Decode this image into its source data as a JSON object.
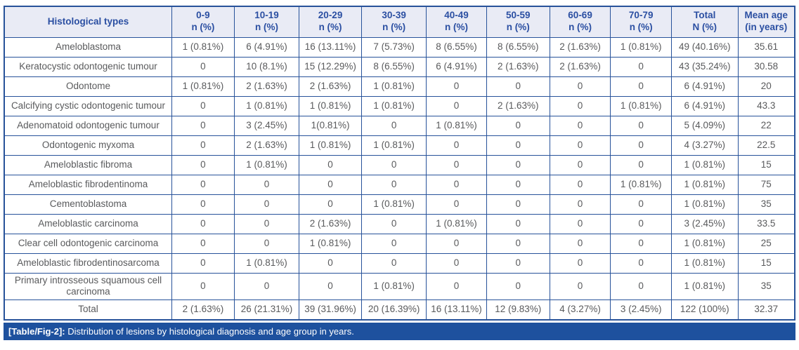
{
  "colors": {
    "border": "#27529a",
    "header_bg": "#e9ebf5",
    "header_text": "#2b4fa2",
    "body_text": "#595a5c",
    "caption_bg": "#1e519e",
    "caption_text": "#ffffff"
  },
  "table": {
    "header": {
      "row_label": "Histological types",
      "age_groups": [
        {
          "line1": "0-9",
          "line2": "n (%)"
        },
        {
          "line1": "10-19",
          "line2": "n (%)"
        },
        {
          "line1": "20-29",
          "line2": "n (%)"
        },
        {
          "line1": "30-39",
          "line2": "n (%)"
        },
        {
          "line1": "40-49",
          "line2": "n (%)"
        },
        {
          "line1": "50-59",
          "line2": "n (%)"
        },
        {
          "line1": "60-69",
          "line2": "n (%)"
        },
        {
          "line1": "70-79",
          "line2": "n (%)"
        },
        {
          "line1": "Total",
          "line2": "N (%)"
        },
        {
          "line1": "Mean age",
          "line2": "(in years)"
        }
      ]
    },
    "rows": [
      {
        "label": "Ameloblastoma",
        "values": [
          "1 (0.81%)",
          "6 (4.91%)",
          "16 (13.11%)",
          "7 (5.73%)",
          "8 (6.55%)",
          "8 (6.55%)",
          "2 (1.63%)",
          "1 (0.81%)",
          "49 (40.16%)",
          "35.61"
        ]
      },
      {
        "label": "Keratocystic odontogenic tumour",
        "values": [
          "0",
          "10 (8.1%)",
          "15 (12.29%)",
          "8 (6.55%)",
          "6 (4.91%)",
          "2 (1.63%)",
          "2 (1.63%)",
          "0",
          "43 (35.24%)",
          "30.58"
        ]
      },
      {
        "label": "Odontome",
        "values": [
          "1 (0.81%)",
          "2 (1.63%)",
          "2 (1.63%)",
          "1 (0.81%)",
          "0",
          "0",
          "0",
          "0",
          "6 (4.91%)",
          "20"
        ]
      },
      {
        "label": "Calcifying cystic odontogenic tumour",
        "values": [
          "0",
          "1 (0.81%)",
          "1 (0.81%)",
          "1 (0.81%)",
          "0",
          "2 (1.63%)",
          "0",
          "1 (0.81%)",
          "6 (4.91%)",
          "43.3"
        ]
      },
      {
        "label": "Adenomatoid odontogenic tumour",
        "values": [
          "0",
          "3 (2.45%)",
          "1(0.81%)",
          "0",
          "1 (0.81%)",
          "0",
          "0",
          "0",
          "5 (4.09%)",
          "22"
        ]
      },
      {
        "label": "Odontogenic myxoma",
        "values": [
          "0",
          "2 (1.63%)",
          "1 (0.81%)",
          "1 (0.81%)",
          "0",
          "0",
          "0",
          "0",
          "4 (3.27%)",
          "22.5"
        ]
      },
      {
        "label": "Ameloblastic fibroma",
        "values": [
          "0",
          "1 (0.81%)",
          "0",
          "0",
          "0",
          "0",
          "0",
          "0",
          "1 (0.81%)",
          "15"
        ]
      },
      {
        "label": "Ameloblastic fibrodentinoma",
        "values": [
          "0",
          "0",
          "0",
          "0",
          "0",
          "0",
          "0",
          "1 (0.81%)",
          "1 (0.81%)",
          "75"
        ]
      },
      {
        "label": "Cementoblastoma",
        "values": [
          "0",
          "0",
          "0",
          "1 (0.81%)",
          "0",
          "0",
          "0",
          "0",
          "1 (0.81%)",
          "35"
        ]
      },
      {
        "label": "Ameloblastic carcinoma",
        "values": [
          "0",
          "0",
          "2 (1.63%)",
          "0",
          "1 (0.81%)",
          "0",
          "0",
          "0",
          "3 (2.45%)",
          "33.5"
        ]
      },
      {
        "label": "Clear cell odontogenic carcinoma",
        "values": [
          "0",
          "0",
          "1 (0.81%)",
          "0",
          "0",
          "0",
          "0",
          "0",
          "1 (0.81%)",
          "25"
        ]
      },
      {
        "label": "Ameloblastic fibrodentinosarcoma",
        "values": [
          "0",
          "1 (0.81%)",
          "0",
          "0",
          "0",
          "0",
          "0",
          "0",
          "1 (0.81%)",
          "15"
        ]
      },
      {
        "label": "Primary introsseous squamous cell carcinoma",
        "values": [
          "0",
          "0",
          "0",
          "1 (0.81%)",
          "0",
          "0",
          "0",
          "0",
          "1 (0.81%)",
          "35"
        ]
      },
      {
        "label": "Total",
        "values": [
          "2 (1.63%)",
          "26 (21.31%)",
          "39 (31.96%)",
          "20 (16.39%)",
          "16 (13.11%)",
          "12 (9.83%)",
          "4 (3.27%)",
          "3 (2.45%)",
          "122 (100%)",
          "32.37"
        ]
      }
    ]
  },
  "caption": {
    "tag": "[Table/Fig-2]:",
    "text": "Distribution of lesions by histological diagnosis and age group in years."
  }
}
